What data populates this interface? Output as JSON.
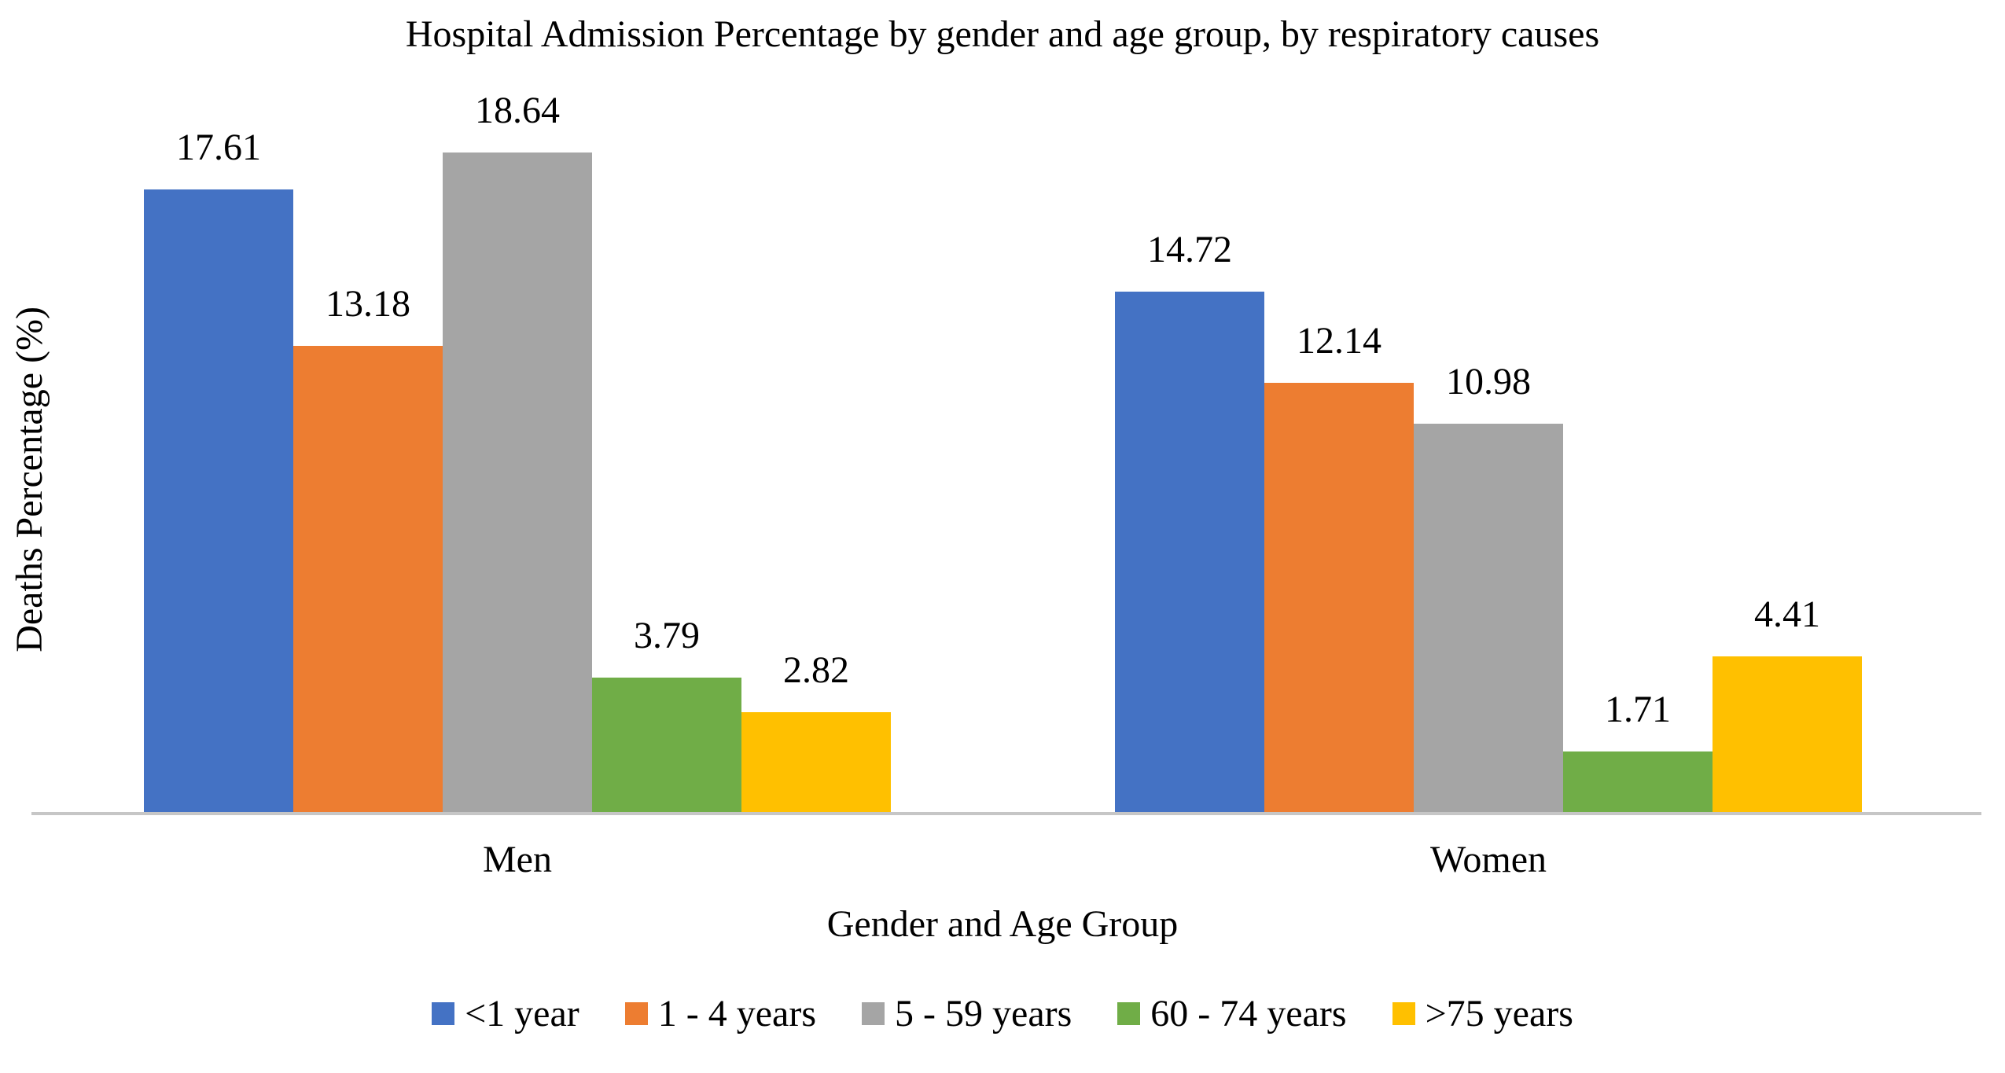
{
  "title": "Hospital Admission Percentage by gender and age group, by respiratory causes",
  "chart_data": {
    "type": "bar",
    "title": "Hospital Admission Percentage by gender and age group, by respiratory causes",
    "xlabel": "Gender and Age Group",
    "ylabel": "Deaths Percentage (%)",
    "categories": [
      "Men",
      "Women"
    ],
    "series": [
      {
        "name": "<1 year",
        "color": "#4472C4",
        "values": [
          17.61,
          14.72
        ]
      },
      {
        "name": "1 - 4 years",
        "color": "#ED7D31",
        "values": [
          13.18,
          12.14
        ]
      },
      {
        "name": "5 - 59 years",
        "color": "#A5A5A5",
        "values": [
          18.64,
          10.98
        ]
      },
      {
        "name": "60 - 74 years",
        "color": "#70AD47",
        "values": [
          3.79,
          1.71
        ]
      },
      {
        "name": ">75 years",
        "color": "#FFC000",
        "values": [
          2.82,
          4.41
        ]
      }
    ],
    "ylim": [
      0,
      19
    ],
    "grid": false,
    "y_tick_labels_visible": false,
    "legend_position": "bottom",
    "data_labels": true,
    "data_label_format": "0.00"
  },
  "colors": {
    "axis_line": "#C6C6C6",
    "text": "#000000",
    "background": "#FFFFFF"
  }
}
